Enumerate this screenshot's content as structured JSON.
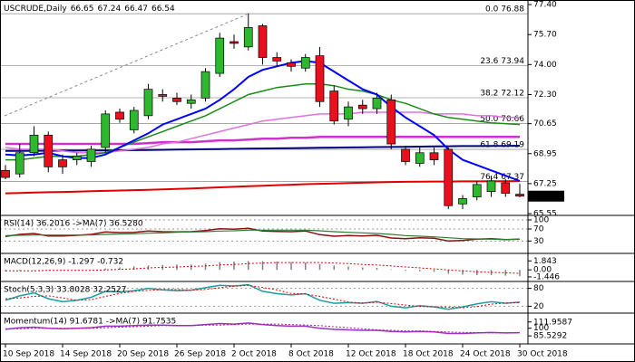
{
  "chart_data": [
    {
      "type": "candlestick",
      "title": "USCRUDE,Daily",
      "categories": [
        "10 Sep 2018",
        null,
        null,
        null,
        "14 Sep 2018",
        null,
        null,
        null,
        "20 Sep 2018",
        null,
        null,
        null,
        "26 Sep 2018",
        null,
        null,
        null,
        "2 Oct 2018",
        null,
        null,
        null,
        "8 Oct 2018",
        null,
        null,
        null,
        "12 Oct 2018",
        null,
        null,
        null,
        "18 Oct 2018",
        null,
        null,
        null,
        "24 Oct 2018",
        null,
        null,
        null,
        "30 Oct 2018"
      ],
      "open": [
        68.0,
        67.8,
        69.0,
        70.0,
        68.6,
        68.6,
        68.5,
        69.3,
        71.3,
        70.3,
        71.1,
        72.3,
        72.1,
        71.8,
        72.1,
        73.5,
        75.3,
        75.0,
        76.2,
        74.4,
        74.1,
        73.8,
        74.5,
        72.5,
        70.9,
        71.7,
        71.5,
        72.0,
        69.2,
        68.4,
        69.0,
        69.2,
        66.1,
        66.5,
        66.8,
        67.3,
        66.65
      ],
      "high": [
        68.3,
        69.5,
        70.5,
        70.2,
        68.9,
        69.0,
        69.4,
        71.4,
        71.5,
        71.6,
        72.9,
        72.6,
        72.4,
        72.3,
        73.8,
        75.8,
        75.7,
        76.9,
        76.3,
        74.7,
        74.3,
        74.6,
        75.0,
        72.8,
        71.9,
        72.0,
        72.4,
        72.3,
        69.4,
        69.3,
        69.3,
        69.3,
        66.6,
        67.4,
        67.7,
        67.5,
        67.24
      ],
      "low": [
        67.5,
        67.6,
        68.8,
        67.9,
        67.8,
        68.3,
        68.2,
        69.0,
        70.7,
        70.1,
        70.9,
        71.9,
        71.7,
        71.5,
        71.9,
        73.3,
        74.9,
        74.8,
        74.0,
        73.9,
        73.6,
        73.6,
        71.6,
        70.6,
        70.5,
        71.2,
        71.2,
        69.2,
        68.3,
        68.2,
        68.3,
        65.8,
        65.8,
        66.3,
        66.5,
        66.5,
        66.47
      ],
      "close": [
        67.6,
        69.0,
        70.0,
        68.2,
        68.2,
        68.8,
        69.2,
        71.2,
        70.9,
        71.4,
        72.6,
        72.2,
        71.9,
        72.0,
        73.6,
        75.5,
        75.2,
        76.1,
        74.4,
        74.2,
        73.9,
        74.4,
        71.9,
        70.8,
        71.6,
        71.5,
        72.1,
        69.5,
        68.5,
        69.0,
        68.6,
        66.0,
        66.4,
        67.2,
        67.4,
        66.7,
        66.54
      ],
      "up_color": "#2db82d",
      "down_color": "#e8101c",
      "series": [
        {
          "color": "#cc33cc",
          "width": 2.5,
          "values": [
            69.5,
            69.5,
            69.5,
            69.5,
            69.5,
            69.5,
            69.5,
            69.5,
            69.5,
            69.5,
            69.55,
            69.6,
            69.6,
            69.6,
            69.65,
            69.7,
            69.7,
            69.75,
            69.8,
            69.8,
            69.85,
            69.85,
            69.9,
            69.9,
            69.9,
            69.9,
            69.9,
            69.9,
            69.9,
            69.9,
            69.9,
            69.9,
            69.9,
            69.9,
            69.9,
            69.9,
            69.9
          ]
        },
        {
          "color": "#000080",
          "width": 2,
          "values": [
            69.1,
            69.1,
            69.11,
            69.11,
            69.12,
            69.12,
            69.13,
            69.13,
            69.14,
            69.15,
            69.16,
            69.17,
            69.18,
            69.19,
            69.2,
            69.21,
            69.22,
            69.23,
            69.24,
            69.25,
            69.26,
            69.27,
            69.28,
            69.29,
            69.3,
            69.31,
            69.32,
            69.33,
            69.34,
            69.35,
            69.36,
            69.37,
            69.38,
            69.38,
            69.39,
            69.39,
            69.4
          ]
        },
        {
          "color": "#e070e0",
          "width": 1.5,
          "values": [
            69.3,
            69.2,
            69.2,
            69.2,
            69.1,
            69.0,
            69.0,
            69.0,
            69.1,
            69.2,
            69.3,
            69.5,
            69.6,
            69.8,
            70.0,
            70.2,
            70.4,
            70.6,
            70.8,
            70.9,
            71.0,
            71.1,
            71.2,
            71.2,
            71.2,
            71.3,
            71.3,
            71.3,
            71.3,
            71.3,
            71.2,
            71.2,
            71.2,
            71.1,
            71.1,
            71.0,
            71.0
          ]
        },
        {
          "color": "#e00000",
          "width": 2,
          "values": [
            66.7,
            66.72,
            66.74,
            66.76,
            66.78,
            66.8,
            66.82,
            66.84,
            66.86,
            66.88,
            66.9,
            66.92,
            66.95,
            66.98,
            67.01,
            67.04,
            67.07,
            67.1,
            67.13,
            67.16,
            67.19,
            67.22,
            67.24,
            67.26,
            67.28,
            67.3,
            67.32,
            67.34,
            67.35,
            67.36,
            67.37,
            67.37,
            67.38,
            67.38,
            67.39,
            67.39,
            67.4
          ]
        },
        {
          "color": "#1a8c1a",
          "width": 1.5,
          "values": [
            68.6,
            68.6,
            68.7,
            68.8,
            68.8,
            68.8,
            68.9,
            69.0,
            69.3,
            69.6,
            69.9,
            70.2,
            70.5,
            70.8,
            71.1,
            71.5,
            71.9,
            72.3,
            72.5,
            72.7,
            72.8,
            72.9,
            72.9,
            72.8,
            72.6,
            72.5,
            72.3,
            72.0,
            71.8,
            71.5,
            71.2,
            71.0,
            70.9,
            70.8,
            70.7,
            70.65,
            70.6
          ]
        },
        {
          "color": "#0000ff",
          "width": 2,
          "values": [
            68.9,
            68.85,
            68.9,
            69.0,
            68.8,
            68.7,
            68.7,
            68.9,
            69.3,
            69.7,
            70.1,
            70.6,
            70.9,
            71.2,
            71.5,
            72.0,
            72.6,
            73.3,
            73.7,
            73.9,
            74.1,
            74.2,
            74.1,
            73.6,
            73.1,
            72.6,
            72.3,
            71.6,
            71.0,
            70.5,
            70.0,
            69.2,
            68.6,
            68.3,
            68.0,
            67.7,
            67.4
          ]
        }
      ],
      "fib": [
        {
          "label": "0.0 76.88",
          "price": 76.88
        },
        {
          "label": "23.6 73.94",
          "price": 73.94
        },
        {
          "label": "38.2 72.12",
          "price": 72.12
        },
        {
          "label": "50.0 70.66",
          "price": 70.66
        },
        {
          "label": "61.8 69.19",
          "price": 69.19
        },
        {
          "label": "76.4 67.37",
          "price": 67.37
        }
      ],
      "ylim": [
        65.5,
        77.66
      ],
      "yticks": [
        {
          "value": 77.4,
          "label": "77.40"
        },
        {
          "value": 75.7,
          "label": "75.70"
        },
        {
          "value": 74,
          "label": "74.00"
        },
        {
          "value": 72.3,
          "label": "72.30"
        },
        70.65,
        68.95,
        67.25,
        65.55
      ],
      "grid": false
    },
    {
      "type": "line",
      "title": "RSI(14) 36.2016 ->MA(7) 36.5280",
      "series": [
        {
          "color": "#8b1010",
          "width": 1.5,
          "values": [
            45,
            52,
            55,
            47,
            47,
            49,
            52,
            60,
            58,
            59,
            63,
            61,
            60,
            61,
            65,
            71,
            69,
            72,
            63,
            62,
            61,
            63,
            51,
            46,
            48,
            47,
            49,
            40,
            38,
            41,
            39,
            30,
            32,
            36,
            38,
            35,
            36.2016
          ]
        },
        {
          "color": "#2e7d32",
          "width": 1.2,
          "values": [
            48,
            49,
            50,
            50,
            50,
            50,
            50,
            52,
            53,
            54,
            56,
            57,
            59,
            60,
            61,
            63,
            64,
            66,
            66,
            66,
            66,
            66,
            64,
            61,
            59,
            57,
            55,
            52,
            48,
            46,
            44,
            41,
            38,
            37,
            36,
            35,
            36.528
          ]
        }
      ],
      "ylim": [
        -8,
        112
      ],
      "yticks": [
        100,
        70,
        30
      ],
      "grid": true
    },
    {
      "type": "bar",
      "title": "MACD(12,26,9) -1.297 -0.732",
      "series": [
        {
          "kind": "bar",
          "color": "#808080",
          "values": [
            -0.3,
            -0.2,
            0.0,
            0.0,
            -0.1,
            -0.1,
            0.0,
            0.3,
            0.5,
            0.7,
            0.9,
            1.0,
            1.1,
            1.1,
            1.3,
            1.6,
            1.7,
            1.8,
            1.8,
            1.7,
            1.6,
            1.5,
            1.2,
            0.9,
            0.7,
            0.5,
            0.4,
            0.1,
            -0.2,
            -0.3,
            -0.4,
            -0.8,
            -1.0,
            -1.1,
            -1.1,
            -1.2,
            -1.297
          ]
        },
        {
          "color": "#e00000",
          "width": 1,
          "dash": "dotted",
          "values": [
            -0.2,
            -0.2,
            -0.2,
            -0.1,
            -0.1,
            -0.1,
            -0.1,
            0.0,
            0.1,
            0.2,
            0.4,
            0.5,
            0.6,
            0.7,
            0.8,
            1.0,
            1.1,
            1.3,
            1.4,
            1.5,
            1.5,
            1.5,
            1.5,
            1.4,
            1.3,
            1.1,
            1.0,
            0.8,
            0.6,
            0.4,
            0.2,
            0.0,
            -0.2,
            -0.4,
            -0.5,
            -0.6,
            -0.732
          ]
        }
      ],
      "ylim": [
        -2.2,
        3.2
      ],
      "yticks": [
        1.843,
        {
          "value": 0,
          "label": "0.00"
        },
        -1.446
      ],
      "grid": false
    },
    {
      "type": "line",
      "title": "Stoch(5,3,3) 33.8028 32.2527",
      "series": [
        {
          "color": "#1a9e9e",
          "width": 1.5,
          "values": [
            40,
            55,
            65,
            45,
            35,
            40,
            50,
            70,
            68,
            72,
            80,
            75,
            72,
            74,
            82,
            90,
            88,
            92,
            70,
            62,
            58,
            62,
            40,
            30,
            32,
            30,
            36,
            20,
            15,
            22,
            18,
            10,
            18,
            28,
            35,
            30,
            33.8028
          ]
        },
        {
          "color": "#e00000",
          "width": 1,
          "dash": "dotted",
          "values": [
            45,
            48,
            53,
            55,
            48,
            40,
            42,
            53,
            63,
            70,
            73,
            76,
            76,
            74,
            76,
            82,
            87,
            90,
            83,
            75,
            63,
            61,
            53,
            44,
            34,
            31,
            33,
            29,
            24,
            19,
            18,
            17,
            15,
            19,
            27,
            31,
            32.2527
          ]
        }
      ],
      "ylim": [
        0,
        100
      ],
      "yticks": [
        80,
        20
      ],
      "grid": true
    },
    {
      "type": "line",
      "title": "Momentum(14) 91.6781 ->MA(7) 91.7535",
      "series": [
        {
          "color": "#9932cc",
          "width": 1.5,
          "values": [
            98,
            101,
            102,
            100,
            99,
            100,
            101,
            104,
            104,
            105,
            106,
            106,
            105,
            105,
            107,
            109,
            108,
            110,
            107,
            105,
            104,
            104,
            100,
            98,
            97,
            96,
            96,
            94,
            93,
            94,
            93,
            90,
            90,
            91,
            92,
            91,
            91.6781
          ]
        },
        {
          "color": "#c71585",
          "width": 1,
          "dash": "dotted",
          "values": [
            99,
            99,
            100,
            100,
            100,
            100,
            100,
            101,
            102,
            103,
            104,
            105,
            105,
            105,
            106,
            106,
            107,
            108,
            108,
            108,
            107,
            106,
            105,
            103,
            101,
            99,
            97,
            96,
            95,
            95,
            94,
            93,
            92,
            92,
            91,
            91,
            91.7535
          ]
        }
      ],
      "ylim": [
        72,
        127
      ],
      "yticks": [
        111.9587,
        100,
        85.5292
      ],
      "grid": false
    }
  ]
}
